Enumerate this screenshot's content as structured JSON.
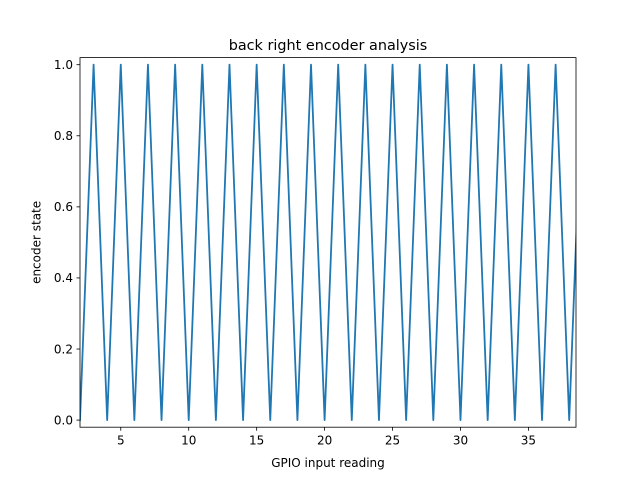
{
  "chart_data": {
    "type": "line",
    "title": "back right encoder analysis",
    "xlabel": "GPIO input reading",
    "ylabel": "encoder state",
    "xlim": [
      2,
      38.5
    ],
    "ylim": [
      -0.02,
      1.02
    ],
    "xticks": [
      5,
      10,
      15,
      20,
      25,
      30,
      35
    ],
    "xtick_labels": [
      "5",
      "10",
      "15",
      "20",
      "25",
      "30",
      "35"
    ],
    "yticks": [
      0.0,
      0.2,
      0.4,
      0.6,
      0.8,
      1.0
    ],
    "ytick_labels": [
      "0.0",
      "0.2",
      "0.4",
      "0.6",
      "0.8",
      "1.0"
    ],
    "grid": false,
    "series": [
      {
        "color": "#1f77b4",
        "x": [
          2,
          3,
          4,
          5,
          6,
          7,
          8,
          9,
          10,
          11,
          12,
          13,
          14,
          15,
          16,
          17,
          18,
          19,
          20,
          21,
          22,
          23,
          24,
          25,
          26,
          27,
          28,
          29,
          30,
          31,
          32,
          33,
          34,
          35,
          36,
          37,
          38,
          39
        ],
        "y": [
          0,
          1,
          0,
          1,
          0,
          1,
          0,
          1,
          0,
          1,
          0,
          1,
          0,
          1,
          0,
          1,
          0,
          1,
          0,
          1,
          0,
          1,
          0,
          1,
          0,
          1,
          0,
          1,
          0,
          1,
          0,
          1,
          0,
          1,
          0,
          1,
          0,
          1
        ]
      }
    ]
  }
}
